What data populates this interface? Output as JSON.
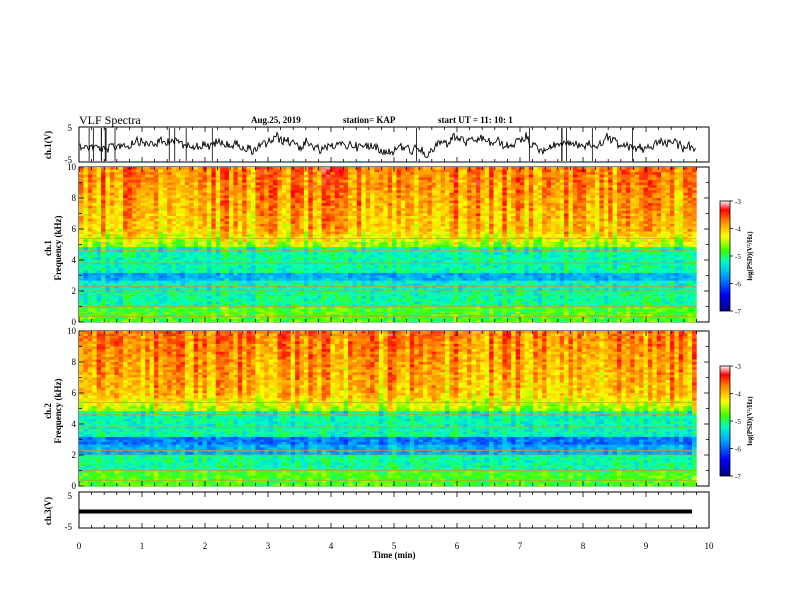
{
  "header": {
    "title": "VLF Spectra",
    "date": "Aug.25, 2019",
    "station": "station= KAP",
    "start": "start  UT =  11: 10: 1"
  },
  "chart_data": [
    {
      "type": "line",
      "name": "ch1-waveform",
      "ylabel": "ch.1(V)",
      "xlim": [
        0,
        10
      ],
      "ylim": [
        -5,
        5
      ],
      "yticks": [
        "5",
        "-5"
      ]
    },
    {
      "type": "heatmap",
      "name": "ch1-spectrogram",
      "ylabel": "ch.1\nFrequency  (kHz)",
      "xlim": [
        0,
        9.8
      ],
      "ylim": [
        0,
        10
      ],
      "yticks": [
        "0",
        "2",
        "4",
        "6",
        "8",
        "10"
      ],
      "colorbar": {
        "label": "log(PSD)(V²/Hz)",
        "range": [
          -7,
          -3
        ],
        "ticks": [
          "-3",
          "-4",
          "-5",
          "-6",
          "-7"
        ]
      }
    },
    {
      "type": "heatmap",
      "name": "ch2-spectrogram",
      "ylabel": "ch.2\nFrequency  (kHz)",
      "xlim": [
        0,
        9.8
      ],
      "ylim": [
        0,
        10
      ],
      "yticks": [
        "0",
        "2",
        "4",
        "6",
        "8",
        "10"
      ],
      "colorbar": {
        "label": "log(PSD)(V²/Hz)",
        "range": [
          -7,
          -3
        ],
        "ticks": [
          "-3",
          "-4",
          "-5",
          "-6",
          "-7"
        ]
      }
    },
    {
      "type": "line",
      "name": "ch3-waveform",
      "ylabel": "ch.3(V)",
      "xlim": [
        0,
        10
      ],
      "ylim": [
        -5,
        5
      ],
      "yticks": [
        "5",
        "-5"
      ],
      "xlabel": "Time  (min)",
      "xticks": [
        "0",
        "1",
        "2",
        "3",
        "4",
        "5",
        "6",
        "7",
        "8",
        "9",
        "10"
      ]
    }
  ]
}
